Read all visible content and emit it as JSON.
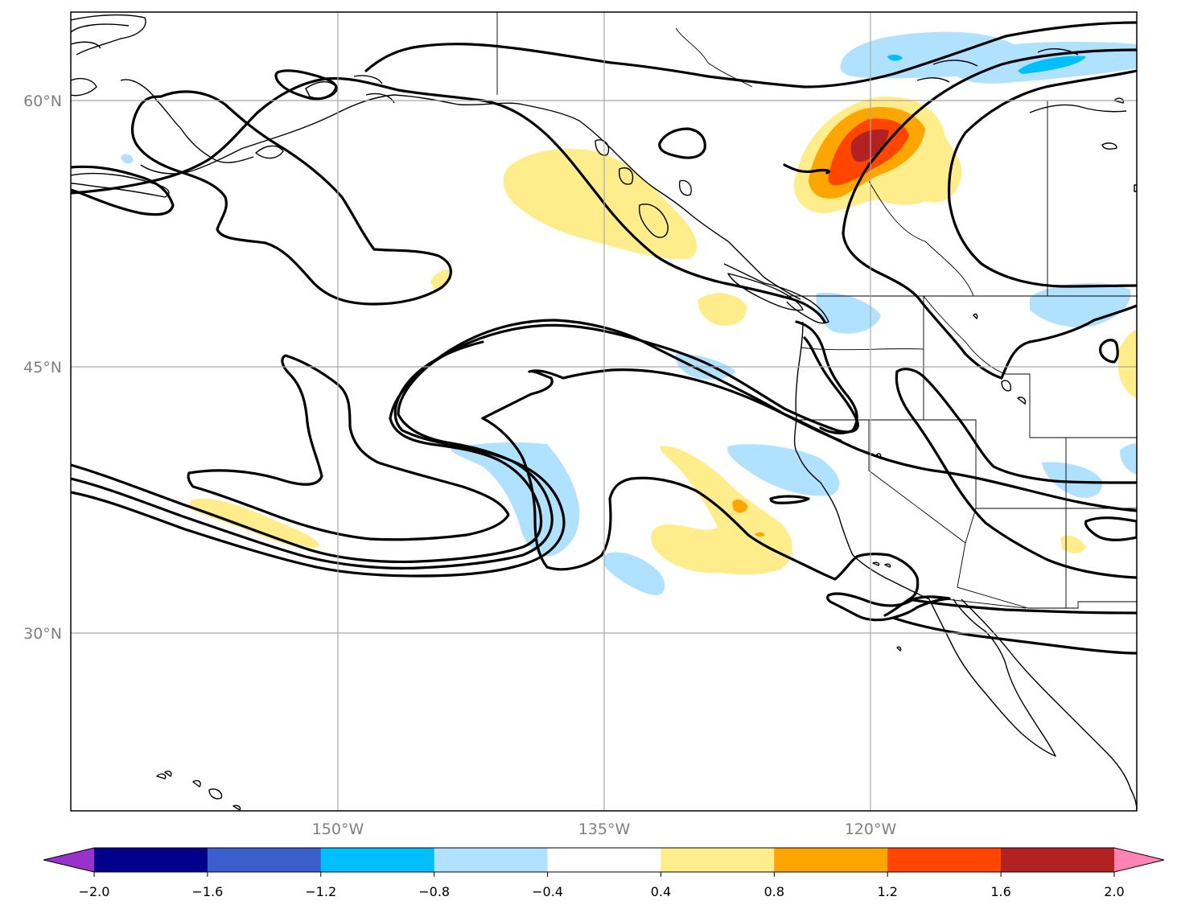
{
  "map": {
    "latitude_labels": [
      "60°N",
      "45°N",
      "30°N"
    ],
    "longitude_labels": [
      "150°W",
      "135°W",
      "120°W"
    ]
  },
  "colorbar": {
    "tick_labels": [
      "−2.0",
      "−1.6",
      "−1.2",
      "−0.8",
      "−0.4",
      "0.4",
      "0.8",
      "1.2",
      "1.6",
      "2.0"
    ],
    "colors": [
      "#9932cc",
      "#00008b",
      "#3a5fcd",
      "#00bfff",
      "#b0e2ff",
      "#ffffff",
      "#ffec8b",
      "#ffa500",
      "#ff4500",
      "#b22222",
      "#ff83b4"
    ]
  },
  "colors": {
    "neg_light": "#b0e2ff",
    "neg_mid": "#00bfff",
    "pos_light": "#ffec8b",
    "pos_mid": "#ffa500",
    "pos_high": "#ff4500",
    "pos_max": "#b22222",
    "grid": "#a9a9a9",
    "axis_text": "#808080"
  }
}
